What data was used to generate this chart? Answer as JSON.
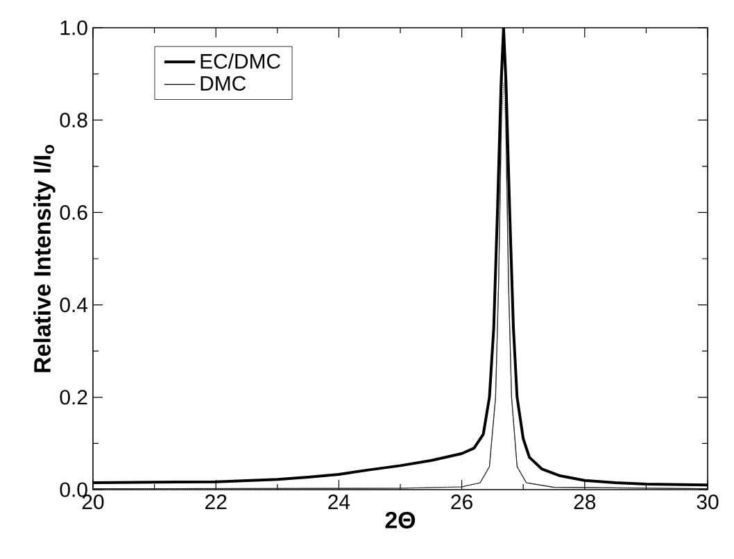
{
  "chart_data": {
    "type": "line",
    "xlabel": "**2Θ**",
    "ylabel": "**Relative Intensity I/I$_{o}$**",
    "xlim": [
      20,
      30
    ],
    "ylim": [
      0,
      1.0
    ],
    "xticks": [
      20,
      22,
      24,
      26,
      28,
      30
    ],
    "yticks": [
      {
        "value": 0,
        "label": "0.0"
      },
      {
        "value": 0.2,
        "label": "0.2"
      },
      {
        "value": 0.4,
        "label": "0.4"
      },
      {
        "value": 0.6,
        "label": "0.6"
      },
      {
        "value": 0.8,
        "label": "0.8"
      },
      {
        "value": 1.0,
        "label": "1.0"
      }
    ],
    "grid": false,
    "legend": "top left",
    "marker": "none",
    "series": [
      {
        "name": "EC/DMC",
        "color": "#000000",
        "line_style": "solid",
        "x": [
          20,
          21,
          22,
          23,
          23.5,
          24,
          24.5,
          25,
          25.5,
          26,
          26.2,
          26.35,
          26.45,
          26.52,
          26.58,
          26.64,
          26.68,
          26.72,
          26.78,
          26.84,
          26.9,
          27.0,
          27.1,
          27.3,
          27.6,
          28,
          28.5,
          29,
          30
        ],
        "values": [
          0.015,
          0.016,
          0.017,
          0.022,
          0.027,
          0.033,
          0.043,
          0.052,
          0.063,
          0.078,
          0.09,
          0.12,
          0.2,
          0.35,
          0.6,
          0.88,
          1.0,
          0.88,
          0.6,
          0.35,
          0.2,
          0.11,
          0.07,
          0.045,
          0.03,
          0.02,
          0.015,
          0.012,
          0.01
        ]
      },
      {
        "name": "DMC",
        "color": "#000000",
        "line_style": "solid",
        "x": [
          20,
          25,
          26,
          26.3,
          26.45,
          26.55,
          26.6,
          26.65,
          26.68,
          26.71,
          26.76,
          26.81,
          26.9,
          27.05,
          27.5,
          30
        ],
        "values": [
          0.002,
          0.003,
          0.006,
          0.015,
          0.05,
          0.2,
          0.45,
          0.85,
          1.0,
          0.85,
          0.45,
          0.2,
          0.05,
          0.015,
          0.005,
          0.002
        ]
      },
      {
        "color": "#555555",
        "line_style": "dotted",
        "x": [
          20,
          25,
          26,
          26.3,
          26.45,
          26.55,
          26.6,
          26.65,
          26.68,
          26.71,
          26.76,
          26.81,
          26.9,
          27.05,
          27.5,
          30
        ],
        "values": [
          0.002,
          0.003,
          0.006,
          0.015,
          0.05,
          0.2,
          0.45,
          0.8,
          0.88,
          0.8,
          0.45,
          0.2,
          0.05,
          0.015,
          0.005,
          0.002
        ]
      }
    ]
  }
}
